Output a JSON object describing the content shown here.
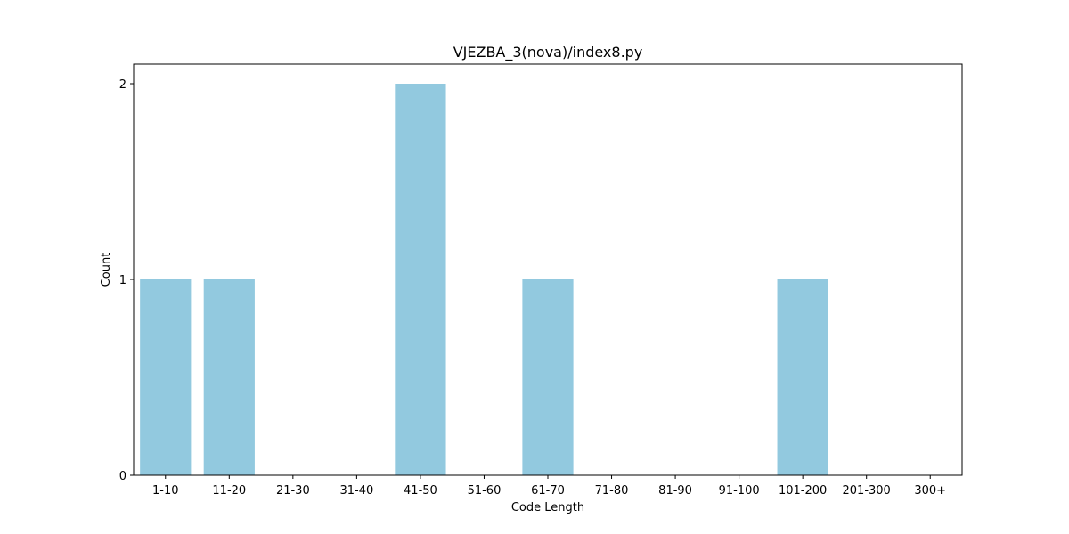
{
  "chart_data": {
    "type": "bar",
    "title": "VJEZBA_3(nova)/index8.py",
    "xlabel": "Code Length",
    "ylabel": "Count",
    "categories": [
      "1-10",
      "11-20",
      "21-30",
      "31-40",
      "41-50",
      "51-60",
      "61-70",
      "71-80",
      "81-90",
      "91-100",
      "101-200",
      "201-300",
      "300+"
    ],
    "values": [
      1,
      1,
      0,
      0,
      2,
      0,
      1,
      0,
      0,
      0,
      1,
      0,
      0
    ],
    "ylim": [
      0,
      2.1
    ],
    "yticks": [
      0,
      1,
      2
    ],
    "bar_color": "#92c9df",
    "grid": false
  }
}
